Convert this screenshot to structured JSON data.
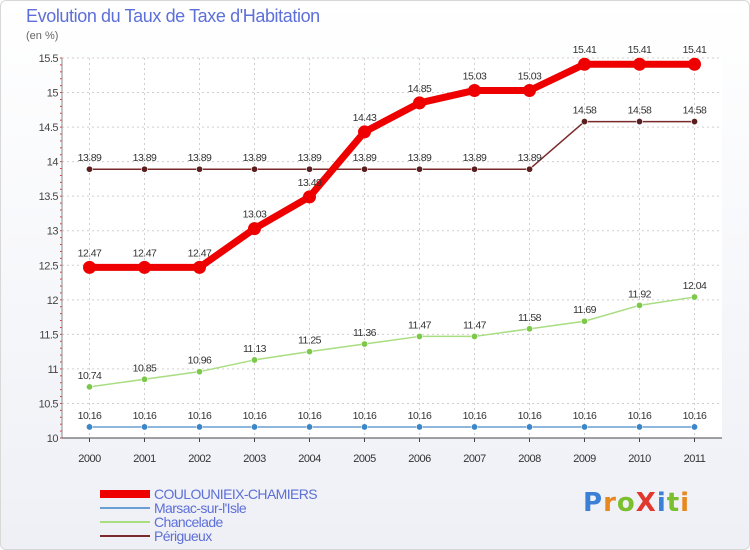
{
  "title": "Evolution du Taux de Taxe d'Habitation",
  "subtitle": "(en %)",
  "logo": {
    "text": "ProXiti",
    "letters": [
      {
        "ch": "P",
        "color": "#3b7fd6"
      },
      {
        "ch": "r",
        "color": "#e8881f"
      },
      {
        "ch": "o",
        "color": "#7bbf2e"
      },
      {
        "ch": "X",
        "color": "#e2372f"
      },
      {
        "ch": "i",
        "color": "#3b7fd6"
      },
      {
        "ch": "t",
        "color": "#7bbf2e"
      },
      {
        "ch": "i",
        "color": "#e8881f"
      }
    ]
  },
  "chart_data": {
    "type": "line",
    "title": "Evolution du Taux de Taxe d'Habitation",
    "ylabel": "(en %)",
    "xlabel": "",
    "ylim": [
      10,
      15.5
    ],
    "yticks": [
      10,
      10.5,
      11,
      11.5,
      12,
      12.5,
      13,
      13.5,
      14,
      14.5,
      15,
      15.5
    ],
    "ytick_labels": [
      "10",
      "10.5",
      "11",
      "11.5",
      "12",
      "12.5",
      "13",
      "13.5",
      "14",
      "14.5",
      "15",
      "15.5"
    ],
    "categories": [
      "2000",
      "2001",
      "2002",
      "2003",
      "2004",
      "2005",
      "2006",
      "2007",
      "2008",
      "2009",
      "2010",
      "2011"
    ],
    "grid": true,
    "legend_position": "bottom-left",
    "series": [
      {
        "name": "Marsac-sur-l'Isle",
        "color": "#6a9fd4",
        "marker": "#3a86c8",
        "thick": false,
        "values": [
          10.16,
          10.16,
          10.16,
          10.16,
          10.16,
          10.16,
          10.16,
          10.16,
          10.16,
          10.16,
          10.16,
          10.16
        ],
        "labels": [
          "10.16",
          "10.16",
          "10.16",
          "10.16",
          "10.16",
          "10.16",
          "10.16",
          "10.16",
          "10.16",
          "10.16",
          "10.16",
          "10.16"
        ]
      },
      {
        "name": "Chancelade",
        "color": "#a8dd80",
        "marker": "#7cc84a",
        "thick": false,
        "values": [
          10.74,
          10.85,
          10.96,
          11.13,
          11.25,
          11.36,
          11.47,
          11.47,
          11.58,
          11.69,
          11.92,
          12.04
        ],
        "labels": [
          "10.74",
          "10.85",
          "10.96",
          "11.13",
          "11.25",
          "11.36",
          "11.47",
          "11.47",
          "11.58",
          "11.69",
          "11.92",
          "12.04"
        ]
      },
      {
        "name": "Périgueux",
        "color": "#7a2a2a",
        "marker": "#5c1f1f",
        "thick": false,
        "values": [
          13.89,
          13.89,
          13.89,
          13.89,
          13.89,
          13.89,
          13.89,
          13.89,
          13.89,
          14.58,
          14.58,
          14.58
        ],
        "labels": [
          "13.89",
          "13.89",
          "13.89",
          "13.89",
          "13.89",
          "13.89",
          "13.89",
          "13.89",
          "13.89",
          "14.58",
          "14.58",
          "14.58"
        ]
      },
      {
        "name": "COULOUNIEIX-CHAMIERS",
        "color": "#ee0000",
        "marker": "#ee0000",
        "thick": true,
        "values": [
          12.47,
          12.47,
          12.47,
          13.03,
          13.49,
          14.43,
          14.85,
          15.03,
          15.03,
          15.41,
          15.41,
          15.41
        ],
        "labels": [
          "12.47",
          "12.47",
          "12.47",
          "13.03",
          "13.49",
          "14.43",
          "14.85",
          "15.03",
          "15.03",
          "15.41",
          "15.41",
          "15.41"
        ]
      }
    ],
    "legend": [
      {
        "name": "COULOUNIEIX-CHAMIERS",
        "color": "#ee0000",
        "thick": true
      },
      {
        "name": "Marsac-sur-l'Isle",
        "color": "#6a9fd4",
        "thick": false
      },
      {
        "name": "Chancelade",
        "color": "#a8dd80",
        "thick": false
      },
      {
        "name": "Périgueux",
        "color": "#7a2a2a",
        "thick": false
      }
    ]
  }
}
